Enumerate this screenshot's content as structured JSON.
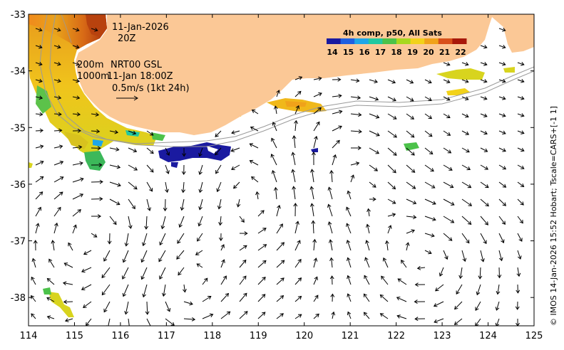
{
  "map": {
    "region": "South-west Australia sea surface temperature and currents",
    "lon_range": [
      114,
      125
    ],
    "lat_range": [
      -38.5,
      -33
    ],
    "x_ticks": [
      "114",
      "115",
      "116",
      "117",
      "118",
      "119",
      "120",
      "121",
      "122",
      "123",
      "124",
      "125"
    ],
    "y_ticks": [
      "-33",
      "-34",
      "-35",
      "-36",
      "-37",
      "-38"
    ],
    "colors": {
      "land": "#fbc896",
      "contour": "#9a9a9a",
      "arrow": "#000000"
    }
  },
  "annotations": {
    "date": "11-Jan-2026",
    "time": "20Z",
    "depth_200": "200m",
    "product": "NRT00 GSL",
    "depth_1000": "1000m",
    "altimetry_time": "11-Jan 18:00Z",
    "scale_label": "0.5m/s (1kt 24h)"
  },
  "colorbar": {
    "title": "4h comp, p50, All Sats",
    "ticks": [
      "14",
      "15",
      "16",
      "17",
      "18",
      "19",
      "20",
      "21",
      "22"
    ],
    "colors": [
      "#1a1aa0",
      "#1f5fe0",
      "#1fa6e8",
      "#22c8a0",
      "#4cc24a",
      "#a8d81e",
      "#f2d21a",
      "#f0a21a",
      "#d8501a",
      "#a8180a"
    ]
  },
  "credit": "© IMOS 14-Jan-2026 15:52 Hobart; Tscale=CARS+[-1 1]"
}
